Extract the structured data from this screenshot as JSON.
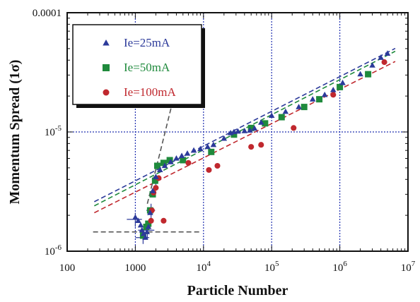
{
  "chart_data": {
    "type": "scatter",
    "xlabel": "Particle Number",
    "ylabel": "Momentum Spread (1σ)",
    "xscale": "log",
    "yscale": "log",
    "xlim": [
      100,
      10000000
    ],
    "ylim": [
      1e-06,
      0.0001
    ],
    "x_ticks": [
      {
        "value": 100,
        "base": "100",
        "exp": ""
      },
      {
        "value": 1000,
        "base": "1000",
        "exp": ""
      },
      {
        "value": 10000,
        "base": "10",
        "exp": "4"
      },
      {
        "value": 100000,
        "base": "10",
        "exp": "5"
      },
      {
        "value": 1000000,
        "base": "10",
        "exp": "6"
      },
      {
        "value": 10000000,
        "base": "10",
        "exp": "7"
      }
    ],
    "y_ticks": [
      {
        "value": 1e-06,
        "base": "10",
        "exp": "-6"
      },
      {
        "value": 1e-05,
        "base": "10",
        "exp": "-5"
      },
      {
        "value": 0.0001,
        "base": "0.0001",
        "exp": ""
      }
    ],
    "grid": true,
    "legend_position": "top-left",
    "series": [
      {
        "name": "Ie=25mA",
        "marker": "triangle",
        "color": "#2c3a9a",
        "points": [
          [
            1000,
            1.92e-06
          ],
          [
            1100,
            1.8e-06
          ],
          [
            1200,
            1.65e-06
          ],
          [
            1250,
            1.5e-06
          ],
          [
            1320,
            1.4e-06
          ],
          [
            1400,
            1.3e-06
          ],
          [
            1480,
            1.45e-06
          ],
          [
            1560,
            1.6e-06
          ],
          [
            1650,
            2.1e-06
          ],
          [
            1800,
            3.2e-06
          ],
          [
            2000,
            4.2e-06
          ],
          [
            2300,
            4.8e-06
          ],
          [
            2700,
            5.2e-06
          ],
          [
            3300,
            5.6e-06
          ],
          [
            4000,
            6e-06
          ],
          [
            4800,
            6.3e-06
          ],
          [
            5800,
            6.6e-06
          ],
          [
            7200,
            7e-06
          ],
          [
            9000,
            7.2e-06
          ],
          [
            11500,
            7.5e-06
          ],
          [
            14000,
            7.8e-06
          ],
          [
            20000,
            8.8e-06
          ],
          [
            25000,
            9.8e-06
          ],
          [
            28000,
            1e-05
          ],
          [
            32000,
            1.01e-05
          ],
          [
            40000,
            1.02e-05
          ],
          [
            48000,
            1.03e-05
          ],
          [
            56000,
            1.07e-05
          ],
          [
            70000,
            1.2e-05
          ],
          [
            100000,
            1.37e-05
          ],
          [
            160000,
            1.48e-05
          ],
          [
            250000,
            1.62e-05
          ],
          [
            400000,
            1.88e-05
          ],
          [
            600000,
            2.05e-05
          ],
          [
            800000,
            2.25e-05
          ],
          [
            1100000,
            2.58e-05
          ],
          [
            2000000,
            3.05e-05
          ],
          [
            3000000,
            3.62e-05
          ],
          [
            4000000,
            4.2e-05
          ],
          [
            5000000,
            4.55e-05
          ]
        ]
      },
      {
        "name": "Ie=50mA",
        "marker": "square",
        "color": "#1f8a3c",
        "points": [
          [
            1300,
            1.35e-06
          ],
          [
            1450,
            1.6e-06
          ],
          [
            1550,
            1.7e-06
          ],
          [
            1650,
            2.2e-06
          ],
          [
            1800,
            3e-06
          ],
          [
            1950,
            3.9e-06
          ],
          [
            2100,
            5.2e-06
          ],
          [
            2600,
            5.5e-06
          ],
          [
            3200,
            5.8e-06
          ],
          [
            5000,
            5.8e-06
          ],
          [
            13000,
            6.8e-06
          ],
          [
            28000,
            9.5e-06
          ],
          [
            50000,
            1.08e-05
          ],
          [
            80000,
            1.18e-05
          ],
          [
            140000,
            1.33e-05
          ],
          [
            300000,
            1.62e-05
          ],
          [
            500000,
            1.88e-05
          ],
          [
            1000000,
            2.38e-05
          ],
          [
            2600000,
            3.05e-05
          ]
        ]
      },
      {
        "name": "Ie=100mA",
        "marker": "circle",
        "color": "#c0282e",
        "points": [
          [
            1700,
            1.8e-06
          ],
          [
            1750,
            2.2e-06
          ],
          [
            1850,
            3.1e-06
          ],
          [
            2000,
            3.4e-06
          ],
          [
            2200,
            4.1e-06
          ],
          [
            2600,
            1.8e-06
          ],
          [
            6000,
            5.5e-06
          ],
          [
            12000,
            4.8e-06
          ],
          [
            16000,
            5.2e-06
          ],
          [
            50000,
            7.5e-06
          ],
          [
            70000,
            7.8e-06
          ],
          [
            210000,
            1.08e-05
          ],
          [
            800000,
            2.05e-05
          ],
          [
            4500000,
            3.85e-05
          ]
        ]
      }
    ],
    "fit_lines": [
      {
        "color": "#2c3a9a",
        "from": [
          250,
          2.6e-06
        ],
        "to": [
          6500000,
          5.02e-05
        ]
      },
      {
        "color": "#1f8a3c",
        "from": [
          250,
          2.4e-06
        ],
        "to": [
          6500000,
          4.75e-05
        ]
      },
      {
        "color": "#c0282e",
        "from": [
          250,
          2.1e-06
        ],
        "to": [
          6500000,
          3.9e-05
        ]
      },
      {
        "color": "#555555",
        "from": [
          1500,
          2.5e-06
        ],
        "to": [
          3400,
          1.65e-05
        ]
      },
      {
        "color": "#555555",
        "from": [
          240,
          1.45e-06
        ],
        "to": [
          9500,
          1.45e-06
        ]
      }
    ],
    "error_bars": [
      {
        "x": 1000,
        "y": 1.85e-06,
        "dx": 250,
        "dy": 2.5e-07
      },
      {
        "x": 1500,
        "y": 1.5e-06,
        "dx": 400,
        "dy": 2.5e-07
      },
      {
        "x": 1300,
        "y": 1.3e-06,
        "dx": 300,
        "dy": 1.5e-07
      },
      {
        "x": 1700,
        "y": 2.2e-06,
        "dx": 250,
        "dy": 3e-07
      },
      {
        "x": 2000,
        "y": 4e-06,
        "dx": 250,
        "dy": 4e-07
      }
    ]
  }
}
